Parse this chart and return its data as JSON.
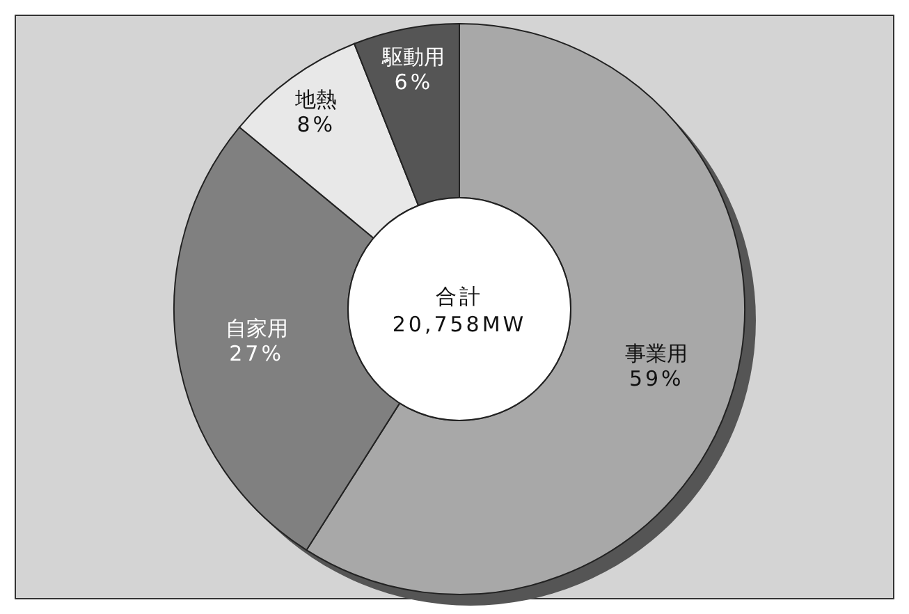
{
  "chart_data": {
    "type": "donut",
    "categories": [
      "事業用",
      "自家用",
      "地熱",
      "駆動用"
    ],
    "values": [
      59,
      27,
      8,
      6
    ],
    "value_labels": [
      "59%",
      "27%",
      "8%",
      "6%"
    ],
    "colors": [
      "#a8a8a8",
      "#808080",
      "#e8e8e8",
      "#555555"
    ],
    "annotations": [
      "合計",
      "20,758MW"
    ]
  }
}
